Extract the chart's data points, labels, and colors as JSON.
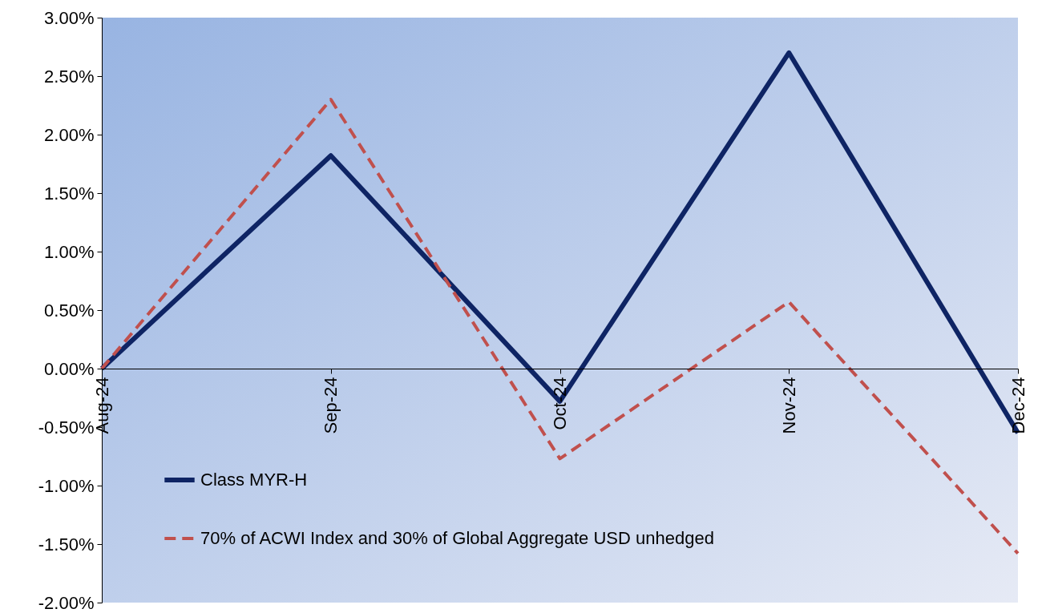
{
  "chart_data": {
    "type": "line",
    "categories": [
      "Aug-24",
      "Sep-24",
      "Oct-24",
      "Nov-24",
      "Dec-24"
    ],
    "series": [
      {
        "name": "Class MYR-H",
        "color": "#0e2464",
        "line_style": "solid",
        "values": [
          0,
          1.82,
          -0.28,
          2.7,
          -0.55
        ]
      },
      {
        "name": "70% of ACWI Index and 30% of Global Aggregate USD unhedged",
        "color": "#c0504d",
        "line_style": "dashed",
        "values": [
          0,
          2.3,
          -0.77,
          0.57,
          -1.58
        ]
      }
    ],
    "ylim": [
      -2,
      3
    ],
    "yticks": [
      {
        "value": -2,
        "label": "-2.00%"
      },
      {
        "value": -1.5,
        "label": "-1.50%"
      },
      {
        "value": -1,
        "label": "-1.00%"
      },
      {
        "value": -0.5,
        "label": "-0.50%"
      },
      {
        "value": 0,
        "label": "0.00%"
      },
      {
        "value": 0.5,
        "label": "0.50%"
      },
      {
        "value": 1,
        "label": "1.00%"
      },
      {
        "value": 1.5,
        "label": "1.50%"
      },
      {
        "value": 2,
        "label": "2.00%"
      },
      {
        "value": 2.5,
        "label": "2.50%"
      },
      {
        "value": 3,
        "label": "3.00%"
      }
    ],
    "grid": false,
    "legend": "bottom left",
    "marker": "none"
  }
}
